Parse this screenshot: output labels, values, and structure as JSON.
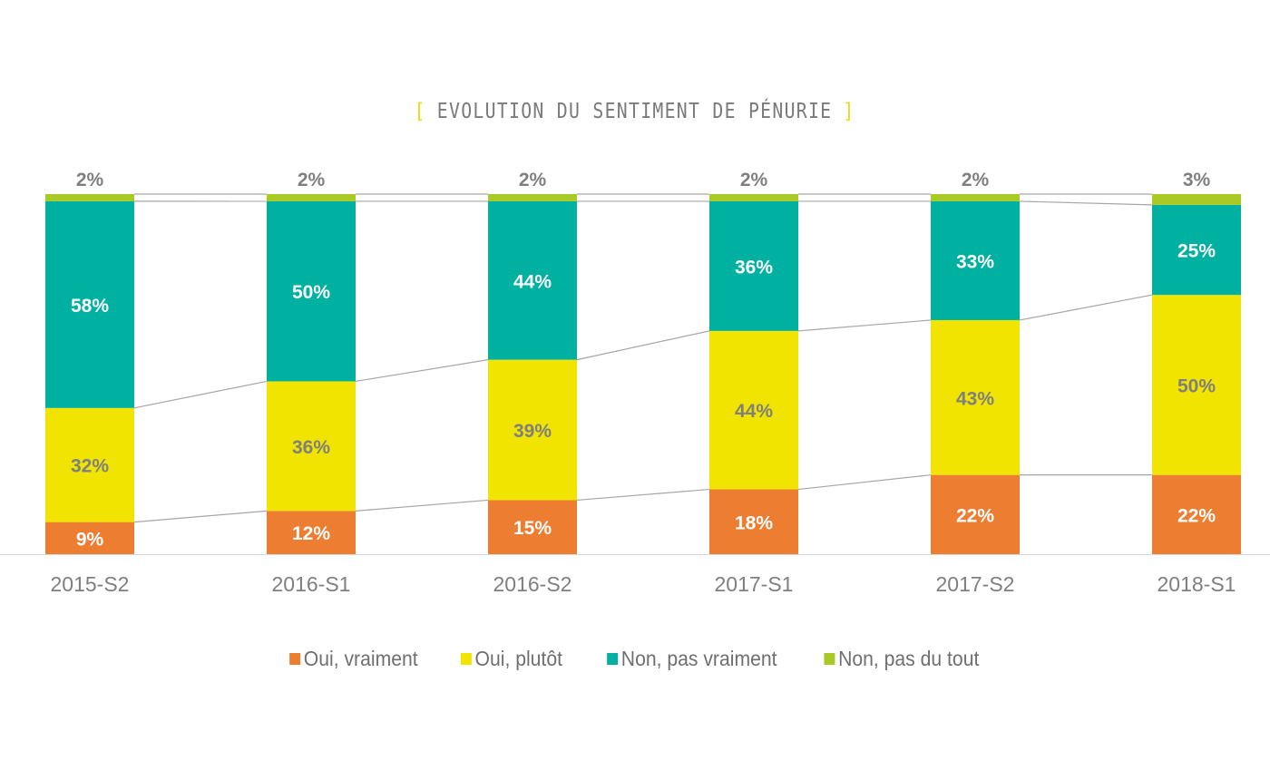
{
  "chart_data": {
    "type": "bar",
    "stacked": true,
    "title": "EVOLUTION DU SENTIMENT DE PÉNURIE",
    "xlabel": "",
    "ylabel": "",
    "ylim": [
      0,
      100
    ],
    "grid": false,
    "legend_position": "bottom",
    "categories": [
      "2015-S2",
      "2016-S1",
      "2016-S2",
      "2017-S1",
      "2017-S2",
      "2018-S1"
    ],
    "series": [
      {
        "name": "Oui, vraiment",
        "color": "#ed7d31",
        "label_color": "#ffffff",
        "values": [
          9,
          12,
          15,
          18,
          22,
          22
        ]
      },
      {
        "name": "Oui, plutôt",
        "color": "#f0e400",
        "label_color": "#7f7f7f",
        "values": [
          32,
          36,
          39,
          44,
          43,
          50
        ]
      },
      {
        "name": "Non, pas vraiment",
        "color": "#00b0a0",
        "label_color": "#ffffff",
        "values": [
          58,
          50,
          44,
          36,
          33,
          25
        ]
      },
      {
        "name": "Non, pas du tout",
        "color": "#a8c926",
        "label_color": "#7f7f7f",
        "values": [
          2,
          2,
          2,
          2,
          2,
          3
        ]
      }
    ],
    "series_lines": true,
    "data_labels": true
  },
  "title": {
    "bracket_left": "[",
    "text": "EVOLUTION DU SENTIMENT DE PÉNURIE",
    "bracket_right": "]"
  },
  "legend": [
    {
      "label": "Oui, vraiment",
      "color": "#ed7d31"
    },
    {
      "label": "Oui, plutôt",
      "color": "#f0e400"
    },
    {
      "label": "Non, pas vraiment",
      "color": "#00b0a0"
    },
    {
      "label": "Non, pas du tout",
      "color": "#a8c926"
    }
  ],
  "colors": {
    "axis_line": "#d9d9d9",
    "series_line": "#a6a6a6",
    "tick_label": "#7f7f7f",
    "title_bracket": "#ecd90c"
  }
}
